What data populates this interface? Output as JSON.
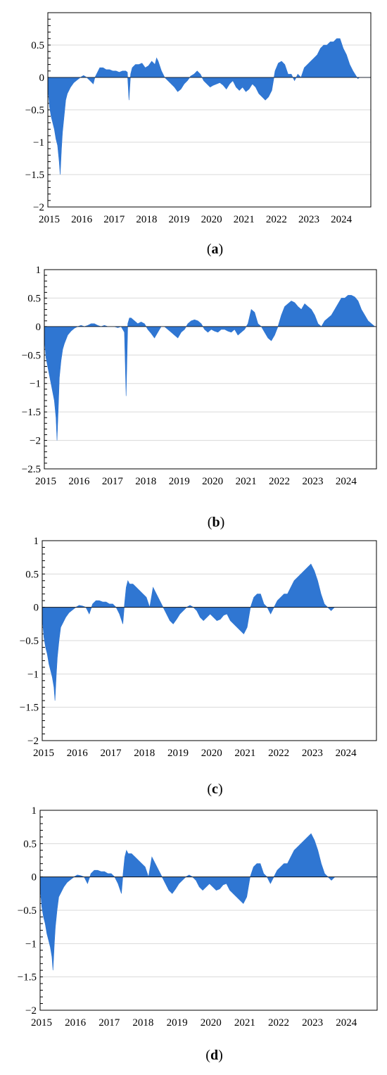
{
  "chart_data": [
    {
      "type": "area",
      "caption_letter": "a",
      "ylim": [
        -2,
        1
      ],
      "yticks": [
        -2,
        -1.5,
        -1,
        -0.5,
        0,
        0.5
      ],
      "ytick_labels": [
        "−2",
        "−1.5",
        "−1",
        "−0.5",
        "0",
        "0.5"
      ],
      "xlim": [
        2015,
        2024.95
      ],
      "xticks": [
        2015,
        2016,
        2017,
        2018,
        2019,
        2020,
        2021,
        2022,
        2023,
        2024
      ],
      "xtick_labels": [
        "2015",
        "2016",
        "2017",
        "2018",
        "2019",
        "2020",
        "2021",
        "2022",
        "2023",
        "2024"
      ],
      "grid": true,
      "color": "#2f76d2",
      "x": [
        2015.0,
        2015.05,
        2015.1,
        2015.15,
        2015.2,
        2015.25,
        2015.3,
        2015.35,
        2015.38,
        2015.42,
        2015.45,
        2015.5,
        2015.55,
        2015.6,
        2015.7,
        2015.8,
        2015.9,
        2016.0,
        2016.1,
        2016.2,
        2016.3,
        2016.4,
        2016.45,
        2016.5,
        2016.6,
        2016.7,
        2016.8,
        2016.9,
        2017.0,
        2017.1,
        2017.2,
        2017.3,
        2017.4,
        2017.45,
        2017.5,
        2017.55,
        2017.6,
        2017.7,
        2017.8,
        2017.9,
        2018.0,
        2018.1,
        2018.2,
        2018.3,
        2018.35,
        2018.4,
        2018.5,
        2018.6,
        2018.7,
        2018.8,
        2018.9,
        2019.0,
        2019.1,
        2019.2,
        2019.3,
        2019.4,
        2019.5,
        2019.6,
        2019.7,
        2019.8,
        2019.9,
        2020.0,
        2020.1,
        2020.2,
        2020.3,
        2020.4,
        2020.5,
        2020.6,
        2020.7,
        2020.8,
        2020.9,
        2021.0,
        2021.1,
        2021.2,
        2021.3,
        2021.4,
        2021.5,
        2021.6,
        2021.7,
        2021.8,
        2021.9,
        2022.0,
        2022.1,
        2022.2,
        2022.3,
        2022.4,
        2022.5,
        2022.6,
        2022.7,
        2022.8,
        2022.9,
        2023.0,
        2023.1,
        2023.2,
        2023.3,
        2023.4,
        2023.5,
        2023.6,
        2023.7,
        2023.8,
        2023.9,
        2024.0,
        2024.1,
        2024.2,
        2024.3,
        2024.4,
        2024.5,
        2024.55,
        2024.6,
        2024.7,
        2024.8,
        2024.9,
        2024.95
      ],
      "y": [
        -0.15,
        -0.45,
        -0.6,
        -0.7,
        -0.8,
        -0.95,
        -1.05,
        -1.3,
        -1.5,
        -1.1,
        -0.85,
        -0.6,
        -0.35,
        -0.25,
        -0.15,
        -0.08,
        -0.04,
        0.0,
        0.03,
        0.0,
        -0.05,
        -0.1,
        0.0,
        0.05,
        0.15,
        0.15,
        0.12,
        0.12,
        0.1,
        0.1,
        0.08,
        0.1,
        0.1,
        0.08,
        -0.35,
        0.05,
        0.15,
        0.2,
        0.2,
        0.22,
        0.15,
        0.18,
        0.25,
        0.2,
        0.3,
        0.25,
        0.1,
        0.0,
        -0.05,
        -0.1,
        -0.15,
        -0.22,
        -0.18,
        -0.1,
        -0.05,
        0.02,
        0.05,
        0.1,
        0.05,
        -0.05,
        -0.1,
        -0.15,
        -0.12,
        -0.1,
        -0.08,
        -0.12,
        -0.18,
        -0.1,
        -0.05,
        -0.15,
        -0.2,
        -0.15,
        -0.22,
        -0.18,
        -0.1,
        -0.15,
        -0.25,
        -0.3,
        -0.35,
        -0.3,
        -0.2,
        0.1,
        0.22,
        0.25,
        0.2,
        0.05,
        0.05,
        -0.05,
        0.05,
        0.0,
        0.15,
        0.2,
        0.25,
        0.3,
        0.35,
        0.45,
        0.5,
        0.5,
        0.55,
        0.55,
        0.6,
        0.6,
        0.45,
        0.35,
        0.2,
        0.1,
        0.02,
        -0.02,
        0.0,
        0.0,
        0.0,
        0.0,
        0.0
      ]
    },
    {
      "type": "area",
      "caption_letter": "b",
      "ylim": [
        -2.5,
        1
      ],
      "yticks": [
        -2.5,
        -2,
        -1.5,
        -1,
        -0.5,
        0,
        0.5,
        1
      ],
      "ytick_labels": [
        "−2.5",
        "−2",
        "−1.5",
        "−1",
        "−0.5",
        "0",
        "0.5",
        "1"
      ],
      "xlim": [
        2015,
        2024.95
      ],
      "xticks": [
        2015,
        2016,
        2017,
        2018,
        2019,
        2020,
        2021,
        2022,
        2023,
        2024
      ],
      "xtick_labels": [
        "2015",
        "2016",
        "2017",
        "2018",
        "2019",
        "2020",
        "2021",
        "2022",
        "2023",
        "2024"
      ],
      "grid": true,
      "color": "#2f76d2",
      "x": [
        2015.0,
        2015.05,
        2015.1,
        2015.15,
        2015.2,
        2015.25,
        2015.3,
        2015.35,
        2015.38,
        2015.42,
        2015.45,
        2015.5,
        2015.55,
        2015.6,
        2015.7,
        2015.8,
        2015.9,
        2016.0,
        2016.1,
        2016.2,
        2016.3,
        2016.4,
        2016.5,
        2016.6,
        2016.7,
        2016.8,
        2016.9,
        2017.0,
        2017.1,
        2017.2,
        2017.3,
        2017.4,
        2017.45,
        2017.5,
        2017.55,
        2017.6,
        2017.7,
        2017.8,
        2017.9,
        2018.0,
        2018.1,
        2018.2,
        2018.3,
        2018.4,
        2018.5,
        2018.6,
        2018.7,
        2018.8,
        2018.9,
        2019.0,
        2019.1,
        2019.2,
        2019.3,
        2019.4,
        2019.5,
        2019.6,
        2019.7,
        2019.8,
        2019.9,
        2020.0,
        2020.1,
        2020.2,
        2020.3,
        2020.4,
        2020.5,
        2020.6,
        2020.7,
        2020.8,
        2020.9,
        2021.0,
        2021.1,
        2021.2,
        2021.3,
        2021.4,
        2021.5,
        2021.6,
        2021.7,
        2021.8,
        2021.9,
        2022.0,
        2022.1,
        2022.2,
        2022.3,
        2022.4,
        2022.5,
        2022.6,
        2022.7,
        2022.8,
        2022.9,
        2023.0,
        2023.1,
        2023.2,
        2023.3,
        2023.4,
        2023.5,
        2023.6,
        2023.7,
        2023.8,
        2023.9,
        2024.0,
        2024.1,
        2024.2,
        2024.3,
        2024.4,
        2024.5,
        2024.6,
        2024.7,
        2024.8,
        2024.9,
        2024.95
      ],
      "y": [
        -0.2,
        -0.55,
        -0.7,
        -0.85,
        -1.0,
        -1.15,
        -1.3,
        -1.6,
        -2.0,
        -1.4,
        -0.9,
        -0.6,
        -0.4,
        -0.3,
        -0.15,
        -0.08,
        -0.03,
        0.0,
        0.02,
        0.0,
        0.02,
        0.05,
        0.05,
        0.02,
        0.0,
        0.02,
        0.0,
        0.0,
        0.0,
        -0.02,
        0.0,
        -0.1,
        -1.22,
        0.05,
        0.15,
        0.15,
        0.1,
        0.05,
        0.08,
        0.05,
        -0.05,
        -0.12,
        -0.2,
        -0.1,
        0.0,
        0.0,
        -0.05,
        -0.1,
        -0.15,
        -0.2,
        -0.1,
        -0.05,
        0.05,
        0.1,
        0.12,
        0.1,
        0.05,
        -0.05,
        -0.1,
        -0.05,
        -0.08,
        -0.1,
        -0.05,
        -0.05,
        -0.08,
        -0.1,
        -0.05,
        -0.15,
        -0.1,
        -0.05,
        0.05,
        0.3,
        0.25,
        0.05,
        0.0,
        -0.1,
        -0.2,
        -0.25,
        -0.15,
        0.0,
        0.2,
        0.35,
        0.4,
        0.45,
        0.42,
        0.35,
        0.3,
        0.4,
        0.35,
        0.3,
        0.2,
        0.05,
        0.0,
        0.1,
        0.15,
        0.2,
        0.3,
        0.4,
        0.5,
        0.5,
        0.55,
        0.55,
        0.52,
        0.45,
        0.3,
        0.2,
        0.1,
        0.05,
        0.0,
        0.0
      ]
    },
    {
      "type": "area",
      "caption_letter": "c",
      "ylim": [
        -2,
        1
      ],
      "yticks": [
        -2,
        -1.5,
        -1,
        -0.5,
        0,
        0.5,
        1
      ],
      "ytick_labels": [
        "−2",
        "−1.5",
        "−1",
        "−0.5",
        "0",
        "0.5",
        "1"
      ],
      "xlim": [
        2015,
        2024.95
      ],
      "xticks": [
        2015,
        2016,
        2017,
        2018,
        2019,
        2020,
        2021,
        2022,
        2023,
        2024
      ],
      "xtick_labels": [
        "2015",
        "2016",
        "2017",
        "2018",
        "2019",
        "2020",
        "2021",
        "2022",
        "2023",
        "2024"
      ],
      "grid": true,
      "color": "#2f76d2",
      "x": [
        2015.0,
        2015.05,
        2015.1,
        2015.15,
        2015.2,
        2015.25,
        2015.3,
        2015.35,
        2015.38,
        2015.42,
        2015.45,
        2015.5,
        2015.55,
        2015.6,
        2015.7,
        2015.8,
        2015.9,
        2016.0,
        2016.1,
        2016.2,
        2016.3,
        2016.4,
        2016.5,
        2016.6,
        2016.7,
        2016.8,
        2016.9,
        2017.0,
        2017.1,
        2017.2,
        2017.3,
        2017.4,
        2017.45,
        2017.5,
        2017.55,
        2017.6,
        2017.7,
        2017.8,
        2017.9,
        2018.0,
        2018.1,
        2018.2,
        2018.3,
        2018.4,
        2018.5,
        2018.6,
        2018.7,
        2018.8,
        2018.9,
        2019.0,
        2019.1,
        2019.2,
        2019.3,
        2019.4,
        2019.5,
        2019.6,
        2019.7,
        2019.8,
        2019.9,
        2020.0,
        2020.1,
        2020.2,
        2020.3,
        2020.4,
        2020.5,
        2020.6,
        2020.7,
        2020.8,
        2020.9,
        2021.0,
        2021.1,
        2021.2,
        2021.3,
        2021.4,
        2021.5,
        2021.6,
        2021.7,
        2021.8,
        2021.9,
        2022.0,
        2022.1,
        2022.2,
        2022.3,
        2022.4,
        2022.5,
        2022.6,
        2022.7,
        2022.8,
        2022.9,
        2023.0,
        2023.1,
        2023.2,
        2023.3,
        2023.4,
        2023.5,
        2023.6,
        2023.7,
        2023.8,
        2023.9,
        2024.0,
        2024.1,
        2024.2,
        2024.3,
        2024.4,
        2024.5,
        2024.6,
        2024.7,
        2024.8,
        2024.9,
        2024.95
      ],
      "y": [
        -0.15,
        -0.45,
        -0.6,
        -0.7,
        -0.85,
        -0.95,
        -1.05,
        -1.2,
        -1.4,
        -1.0,
        -0.75,
        -0.5,
        -0.3,
        -0.25,
        -0.15,
        -0.08,
        -0.04,
        0.0,
        0.03,
        0.02,
        0.0,
        -0.1,
        0.05,
        0.1,
        0.1,
        0.08,
        0.08,
        0.05,
        0.05,
        0.0,
        -0.1,
        -0.25,
        0.05,
        0.3,
        0.4,
        0.35,
        0.35,
        0.3,
        0.25,
        0.2,
        0.15,
        0.0,
        0.3,
        0.2,
        0.1,
        0.0,
        -0.1,
        -0.2,
        -0.25,
        -0.18,
        -0.1,
        -0.05,
        0.0,
        0.03,
        0.0,
        -0.05,
        -0.15,
        -0.2,
        -0.15,
        -0.1,
        -0.15,
        -0.2,
        -0.18,
        -0.12,
        -0.1,
        -0.2,
        -0.25,
        -0.3,
        -0.35,
        -0.4,
        -0.3,
        0.0,
        0.15,
        0.2,
        0.2,
        0.05,
        0.0,
        -0.1,
        0.0,
        0.1,
        0.15,
        0.2,
        0.2,
        0.3,
        0.4,
        0.45,
        0.5,
        0.55,
        0.6,
        0.65,
        0.55,
        0.4,
        0.2,
        0.05,
        0.0,
        -0.05,
        0.0,
        0.0,
        0.0,
        0.0,
        0.0,
        0.0,
        0.0,
        0.0,
        0.0,
        0.0,
        0.0,
        0.0,
        0.0,
        0.0
      ]
    },
    {
      "type": "area",
      "caption_letter": "d",
      "ylim": [
        -2,
        1
      ],
      "yticks": [
        -2,
        -1.5,
        -1,
        -0.5,
        0,
        0.5,
        1
      ],
      "ytick_labels": [
        "−2",
        "−1.5",
        "−1",
        "−0.5",
        "0",
        "0.5",
        "1"
      ],
      "xlim": [
        2015,
        2024.95
      ],
      "xticks": [
        2015,
        2016,
        2017,
        2018,
        2019,
        2020,
        2021,
        2022,
        2023,
        2024
      ],
      "xtick_labels": [
        "2015",
        "2016",
        "2017",
        "2018",
        "2019",
        "2020",
        "2021",
        "2022",
        "2023",
        "2024"
      ],
      "grid": true,
      "color": "#2f76d2",
      "x": [
        2015.0,
        2015.05,
        2015.1,
        2015.15,
        2015.2,
        2015.25,
        2015.3,
        2015.35,
        2015.38,
        2015.42,
        2015.45,
        2015.5,
        2015.55,
        2015.6,
        2015.7,
        2015.8,
        2015.9,
        2016.0,
        2016.1,
        2016.2,
        2016.3,
        2016.4,
        2016.5,
        2016.6,
        2016.7,
        2016.8,
        2016.9,
        2017.0,
        2017.1,
        2017.2,
        2017.3,
        2017.4,
        2017.45,
        2017.5,
        2017.55,
        2017.6,
        2017.7,
        2017.8,
        2017.9,
        2018.0,
        2018.1,
        2018.2,
        2018.3,
        2018.4,
        2018.5,
        2018.6,
        2018.7,
        2018.8,
        2018.9,
        2019.0,
        2019.1,
        2019.2,
        2019.3,
        2019.4,
        2019.5,
        2019.6,
        2019.7,
        2019.8,
        2019.9,
        2020.0,
        2020.1,
        2020.2,
        2020.3,
        2020.4,
        2020.5,
        2020.6,
        2020.7,
        2020.8,
        2020.9,
        2021.0,
        2021.1,
        2021.2,
        2021.3,
        2021.4,
        2021.5,
        2021.6,
        2021.7,
        2021.8,
        2021.9,
        2022.0,
        2022.1,
        2022.2,
        2022.3,
        2022.4,
        2022.5,
        2022.6,
        2022.7,
        2022.8,
        2022.9,
        2023.0,
        2023.1,
        2023.2,
        2023.3,
        2023.4,
        2023.5,
        2023.6,
        2023.7,
        2023.8,
        2023.9,
        2024.0,
        2024.1,
        2024.2,
        2024.3,
        2024.4,
        2024.5,
        2024.6,
        2024.7,
        2024.8,
        2024.9,
        2024.95
      ],
      "y": [
        -0.15,
        -0.45,
        -0.6,
        -0.7,
        -0.85,
        -0.95,
        -1.05,
        -1.2,
        -1.4,
        -1.0,
        -0.75,
        -0.5,
        -0.3,
        -0.25,
        -0.15,
        -0.08,
        -0.04,
        0.0,
        0.03,
        0.02,
        0.0,
        -0.1,
        0.05,
        0.1,
        0.1,
        0.08,
        0.08,
        0.05,
        0.05,
        0.0,
        -0.1,
        -0.25,
        0.05,
        0.3,
        0.4,
        0.35,
        0.35,
        0.3,
        0.25,
        0.2,
        0.15,
        0.0,
        0.3,
        0.2,
        0.1,
        0.0,
        -0.1,
        -0.2,
        -0.25,
        -0.18,
        -0.1,
        -0.05,
        0.0,
        0.03,
        0.0,
        -0.05,
        -0.15,
        -0.2,
        -0.15,
        -0.1,
        -0.15,
        -0.2,
        -0.18,
        -0.12,
        -0.1,
        -0.2,
        -0.25,
        -0.3,
        -0.35,
        -0.4,
        -0.3,
        0.0,
        0.15,
        0.2,
        0.2,
        0.05,
        0.0,
        -0.1,
        0.0,
        0.1,
        0.15,
        0.2,
        0.2,
        0.3,
        0.4,
        0.45,
        0.5,
        0.55,
        0.6,
        0.65,
        0.55,
        0.4,
        0.2,
        0.05,
        0.0,
        -0.05,
        0.0,
        0.0,
        0.0,
        0.0,
        0.0,
        0.0,
        0.0,
        0.0,
        0.0,
        0.0,
        0.0,
        0.0,
        0.0,
        0.0
      ]
    }
  ]
}
